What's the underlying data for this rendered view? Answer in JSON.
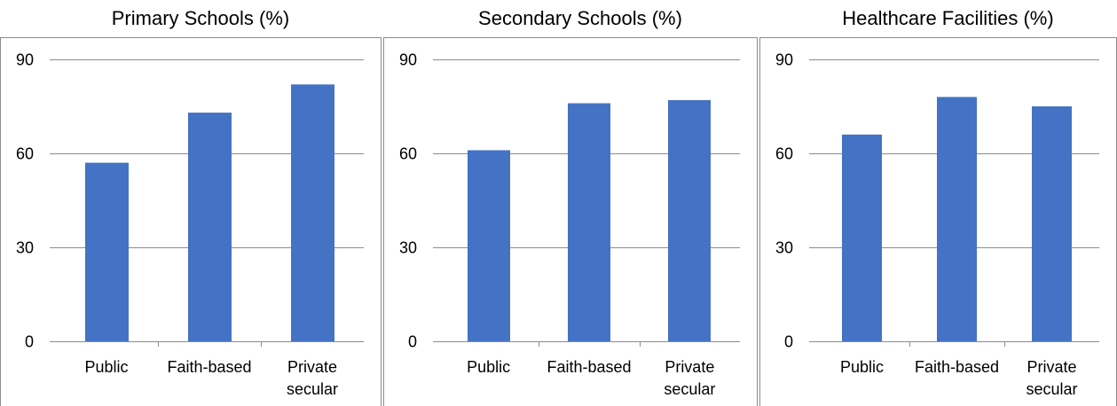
{
  "colors": {
    "bar": "#4472C4",
    "grid": "#8C8C8C",
    "border": "#8C8C8C",
    "background": "#FFFFFF"
  },
  "chart_data": [
    {
      "type": "bar",
      "title": "Primary Schools (%)",
      "categories": [
        [
          "Public"
        ],
        [
          "Faith-based"
        ],
        [
          "Private",
          "secular"
        ]
      ],
      "values": [
        57,
        73,
        82
      ],
      "ylim": [
        0,
        90
      ],
      "yticks": [
        0,
        30,
        60,
        90
      ],
      "grid": true,
      "xlabel": "",
      "ylabel": ""
    },
    {
      "type": "bar",
      "title": "Secondary Schools (%)",
      "categories": [
        [
          "Public"
        ],
        [
          "Faith-based"
        ],
        [
          "Private",
          "secular"
        ]
      ],
      "values": [
        61,
        76,
        77
      ],
      "ylim": [
        0,
        90
      ],
      "yticks": [
        0,
        30,
        60,
        90
      ],
      "grid": true,
      "xlabel": "",
      "ylabel": ""
    },
    {
      "type": "bar",
      "title": "Healthcare Facilities (%)",
      "categories": [
        [
          "Public"
        ],
        [
          "Faith-based"
        ],
        [
          "Private",
          "secular"
        ]
      ],
      "values": [
        66,
        78,
        75
      ],
      "ylim": [
        0,
        90
      ],
      "yticks": [
        0,
        30,
        60,
        90
      ],
      "grid": true,
      "xlabel": "",
      "ylabel": ""
    }
  ]
}
